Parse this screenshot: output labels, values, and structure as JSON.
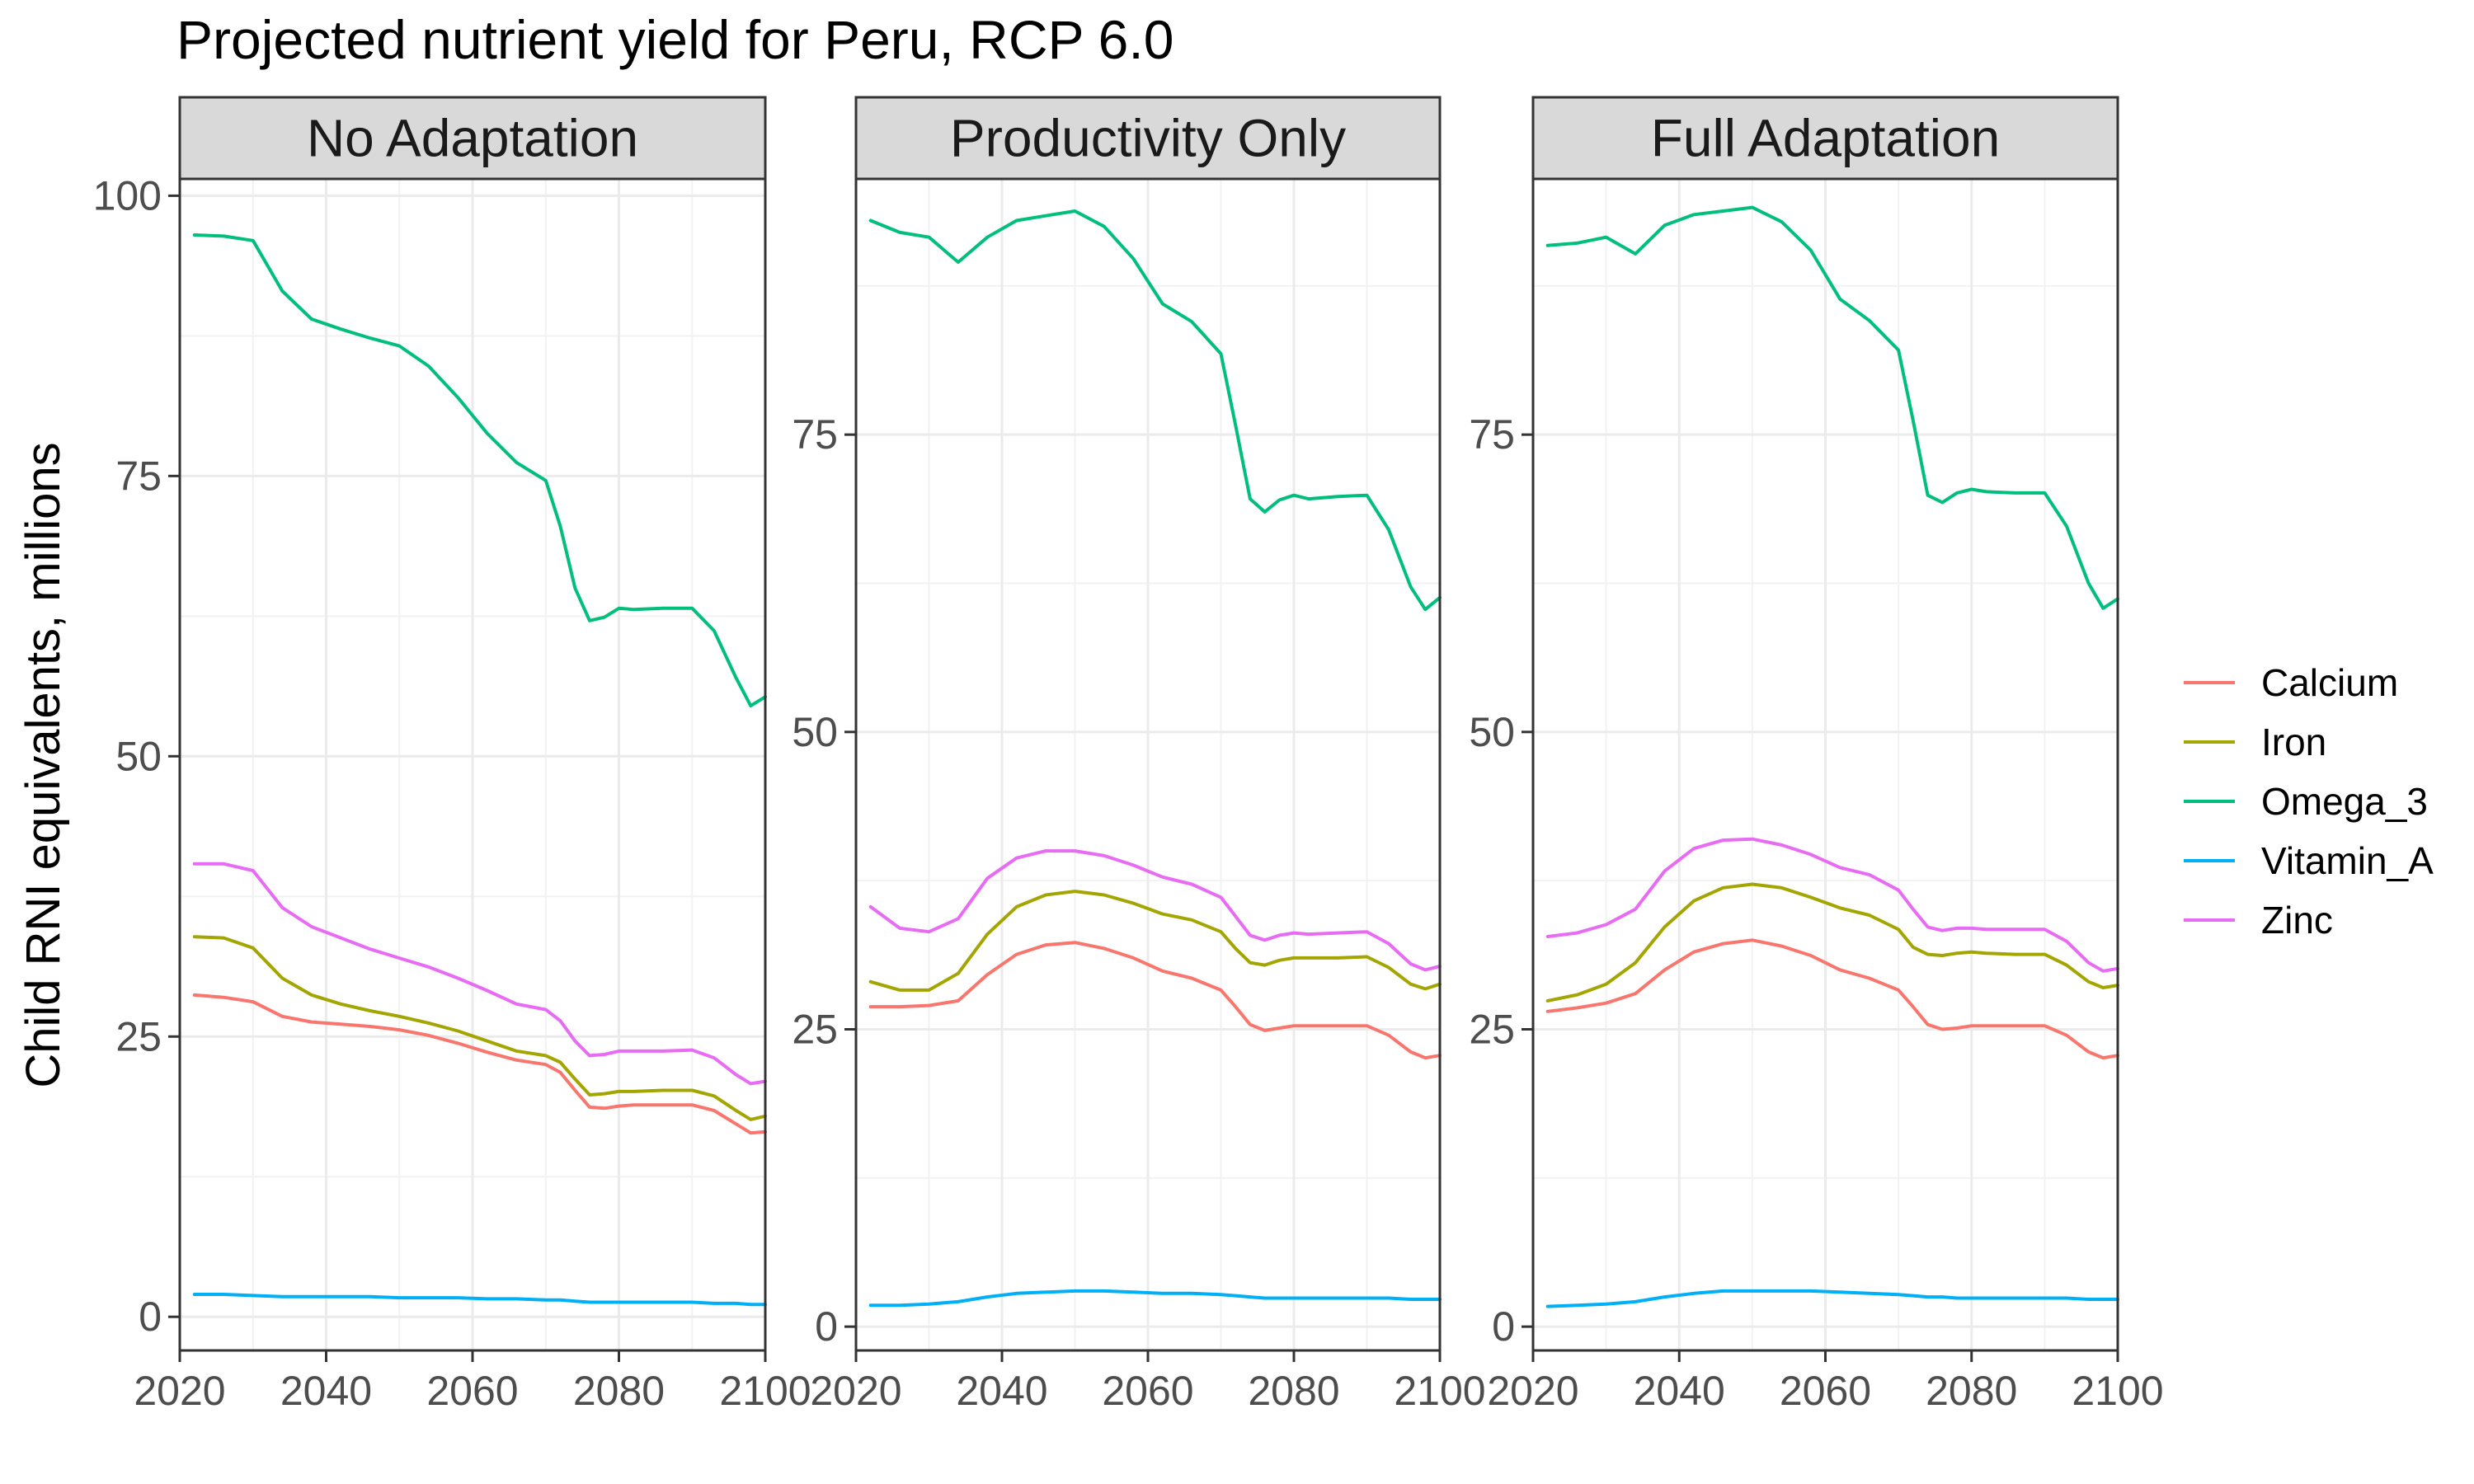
{
  "title": "Projected nutrient yield for Peru, RCP 6.0",
  "colors": {
    "Calcium": "#F8766D",
    "Iron": "#A3A500",
    "Omega_3": "#00BF7D",
    "Vitamin_A": "#00B0F6",
    "Zinc": "#E76BF3"
  },
  "chart_data": [
    {
      "type": "line",
      "facet": "No Adaptation",
      "xlabel": "",
      "ylabel": "Child RNI equivalents, millions",
      "xlim": [
        2020,
        2100
      ],
      "ylim": [
        -3,
        101.5
      ],
      "xticks": [
        2020,
        2040,
        2060,
        2080,
        2100
      ],
      "yticks": [
        0,
        25,
        50,
        75,
        100
      ],
      "grid": true,
      "legend": "right",
      "x": [
        2022,
        2026,
        2030,
        2034,
        2038,
        2042,
        2046,
        2050,
        2054,
        2058,
        2062,
        2066,
        2070,
        2072,
        2074,
        2076,
        2078,
        2080,
        2082,
        2086,
        2090,
        2093,
        2096,
        2098,
        2100
      ],
      "series": [
        {
          "name": "Calcium",
          "values": [
            28.7,
            28.5,
            28.1,
            26.8,
            26.3,
            26.1,
            25.9,
            25.6,
            25.1,
            24.4,
            23.6,
            22.9,
            22.5,
            21.8,
            20.2,
            18.7,
            18.6,
            18.8,
            18.9,
            18.9,
            18.9,
            18.4,
            17.2,
            16.4,
            16.5
          ]
        },
        {
          "name": "Iron",
          "values": [
            33.9,
            33.8,
            32.9,
            30.2,
            28.7,
            27.9,
            27.3,
            26.8,
            26.2,
            25.5,
            24.6,
            23.7,
            23.3,
            22.7,
            21.2,
            19.8,
            19.9,
            20.1,
            20.1,
            20.2,
            20.2,
            19.7,
            18.4,
            17.6,
            17.9
          ]
        },
        {
          "name": "Omega_3",
          "values": [
            96.5,
            96.4,
            96.0,
            91.5,
            89.0,
            88.1,
            87.3,
            86.6,
            84.8,
            82.0,
            78.8,
            76.2,
            74.6,
            70.5,
            65.0,
            62.1,
            62.4,
            63.2,
            63.1,
            63.2,
            63.2,
            61.2,
            57.0,
            54.5,
            55.3
          ]
        },
        {
          "name": "Vitamin_A",
          "values": [
            2.0,
            2.0,
            1.9,
            1.8,
            1.8,
            1.8,
            1.8,
            1.7,
            1.7,
            1.7,
            1.6,
            1.6,
            1.5,
            1.5,
            1.4,
            1.3,
            1.3,
            1.3,
            1.3,
            1.3,
            1.3,
            1.2,
            1.2,
            1.1,
            1.1
          ]
        },
        {
          "name": "Zinc",
          "values": [
            40.4,
            40.4,
            39.8,
            36.5,
            34.8,
            33.8,
            32.8,
            32.0,
            31.2,
            30.2,
            29.1,
            27.9,
            27.4,
            26.4,
            24.6,
            23.3,
            23.4,
            23.7,
            23.7,
            23.7,
            23.8,
            23.1,
            21.6,
            20.8,
            21.0
          ]
        }
      ]
    },
    {
      "type": "line",
      "facet": "Productivity Only",
      "xlabel": "",
      "ylabel": "Child RNI equivalents, millions",
      "xlim": [
        2020,
        2100
      ],
      "ylim": [
        -2,
        96.5
      ],
      "xticks": [
        2020,
        2040,
        2060,
        2080,
        2100
      ],
      "yticks": [
        0,
        25,
        50,
        75
      ],
      "grid": true,
      "legend": "right",
      "x": [
        2022,
        2026,
        2030,
        2034,
        2038,
        2042,
        2046,
        2050,
        2054,
        2058,
        2062,
        2066,
        2070,
        2072,
        2074,
        2076,
        2078,
        2080,
        2082,
        2086,
        2090,
        2093,
        2096,
        2098,
        2100
      ],
      "series": [
        {
          "name": "Calcium",
          "values": [
            26.9,
            26.9,
            27.0,
            27.4,
            29.6,
            31.3,
            32.1,
            32.3,
            31.8,
            31.0,
            29.9,
            29.3,
            28.3,
            26.9,
            25.4,
            24.9,
            25.1,
            25.3,
            25.3,
            25.3,
            25.3,
            24.5,
            23.1,
            22.6,
            22.8
          ]
        },
        {
          "name": "Iron",
          "values": [
            29.0,
            28.3,
            28.3,
            29.7,
            33.0,
            35.3,
            36.3,
            36.6,
            36.3,
            35.6,
            34.7,
            34.2,
            33.2,
            31.8,
            30.6,
            30.4,
            30.8,
            31.0,
            31.0,
            31.0,
            31.1,
            30.2,
            28.8,
            28.4,
            28.8
          ]
        },
        {
          "name": "Omega_3",
          "values": [
            93.0,
            92.0,
            91.6,
            89.5,
            91.6,
            93.0,
            93.4,
            93.8,
            92.5,
            89.8,
            86.0,
            84.5,
            81.8,
            75.8,
            69.6,
            68.5,
            69.5,
            69.9,
            69.6,
            69.8,
            69.9,
            67.0,
            62.2,
            60.3,
            61.3
          ]
        },
        {
          "name": "Vitamin_A",
          "values": [
            1.8,
            1.8,
            1.9,
            2.1,
            2.5,
            2.8,
            2.9,
            3.0,
            3.0,
            2.9,
            2.8,
            2.8,
            2.7,
            2.6,
            2.5,
            2.4,
            2.4,
            2.4,
            2.4,
            2.4,
            2.4,
            2.4,
            2.3,
            2.3,
            2.3
          ]
        },
        {
          "name": "Zinc",
          "values": [
            35.3,
            33.5,
            33.2,
            34.3,
            37.7,
            39.4,
            40.0,
            40.0,
            39.6,
            38.8,
            37.8,
            37.2,
            36.1,
            34.5,
            32.9,
            32.5,
            32.9,
            33.1,
            33.0,
            33.1,
            33.2,
            32.2,
            30.5,
            30.0,
            30.3
          ]
        }
      ]
    },
    {
      "type": "line",
      "facet": "Full Adaptation",
      "xlabel": "",
      "ylabel": "Child RNI equivalents, millions",
      "xlim": [
        2020,
        2100
      ],
      "ylim": [
        -2,
        96.5
      ],
      "xticks": [
        2020,
        2040,
        2060,
        2080,
        2100
      ],
      "yticks": [
        0,
        25,
        50,
        75
      ],
      "grid": true,
      "legend": "right",
      "x": [
        2022,
        2026,
        2030,
        2034,
        2038,
        2042,
        2046,
        2050,
        2054,
        2058,
        2062,
        2066,
        2070,
        2072,
        2074,
        2076,
        2078,
        2080,
        2082,
        2086,
        2090,
        2093,
        2096,
        2098,
        2100
      ],
      "series": [
        {
          "name": "Calcium",
          "values": [
            26.5,
            26.8,
            27.2,
            28.0,
            30.0,
            31.5,
            32.2,
            32.5,
            32.0,
            31.2,
            30.0,
            29.3,
            28.3,
            26.9,
            25.4,
            25.0,
            25.1,
            25.3,
            25.3,
            25.3,
            25.3,
            24.5,
            23.1,
            22.6,
            22.8
          ]
        },
        {
          "name": "Iron",
          "values": [
            27.4,
            27.9,
            28.8,
            30.6,
            33.6,
            35.8,
            36.9,
            37.2,
            36.9,
            36.1,
            35.2,
            34.6,
            33.4,
            31.9,
            31.3,
            31.2,
            31.4,
            31.5,
            31.4,
            31.3,
            31.3,
            30.4,
            29.0,
            28.5,
            28.7
          ]
        },
        {
          "name": "Omega_3",
          "values": [
            90.9,
            91.1,
            91.6,
            90.2,
            92.6,
            93.5,
            93.8,
            94.1,
            92.9,
            90.5,
            86.4,
            84.6,
            82.1,
            76.2,
            69.9,
            69.3,
            70.1,
            70.4,
            70.2,
            70.1,
            70.1,
            67.3,
            62.5,
            60.4,
            61.2
          ]
        },
        {
          "name": "Vitamin_A",
          "values": [
            1.7,
            1.8,
            1.9,
            2.1,
            2.5,
            2.8,
            3.0,
            3.0,
            3.0,
            3.0,
            2.9,
            2.8,
            2.7,
            2.6,
            2.5,
            2.5,
            2.4,
            2.4,
            2.4,
            2.4,
            2.4,
            2.4,
            2.3,
            2.3,
            2.3
          ]
        },
        {
          "name": "Zinc",
          "values": [
            32.8,
            33.1,
            33.8,
            35.1,
            38.3,
            40.2,
            40.9,
            41.0,
            40.5,
            39.7,
            38.6,
            38.0,
            36.7,
            35.1,
            33.6,
            33.3,
            33.5,
            33.5,
            33.4,
            33.4,
            33.4,
            32.4,
            30.6,
            29.9,
            30.1
          ]
        }
      ]
    }
  ]
}
